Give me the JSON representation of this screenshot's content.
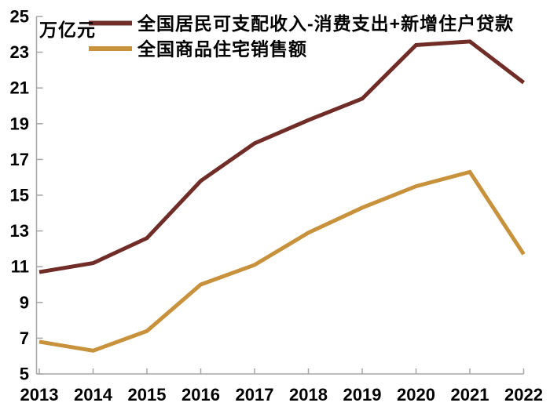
{
  "unit_label": "万亿元",
  "colors": {
    "series1": "#702C27",
    "series2": "#C8913C",
    "axis": "#A6A6A6",
    "text": "#000000",
    "background": "#FFFFFF"
  },
  "chart_data": {
    "type": "line",
    "title": "",
    "xlabel": "",
    "ylabel": "万亿元",
    "x": [
      2013,
      2014,
      2015,
      2016,
      2017,
      2018,
      2019,
      2020,
      2021,
      2022
    ],
    "series": [
      {
        "name": "全国居民可支配收入-消费支出+新增住户贷款",
        "color_key": "series1",
        "values": [
          10.7,
          11.2,
          12.6,
          15.8,
          17.9,
          19.2,
          20.4,
          23.4,
          23.6,
          21.3
        ]
      },
      {
        "name": "全国商品住宅销售额",
        "color_key": "series2",
        "values": [
          6.8,
          6.3,
          7.4,
          10.0,
          11.1,
          12.9,
          14.3,
          15.5,
          16.3,
          11.7
        ]
      }
    ],
    "ylim": [
      5,
      25
    ],
    "ytick_labels": [
      25,
      23,
      21,
      19,
      17,
      15,
      13,
      11,
      9,
      7,
      5
    ],
    "ytick_step": 2,
    "grid": false,
    "legend_position": "top-left",
    "tick_direction": "in"
  }
}
